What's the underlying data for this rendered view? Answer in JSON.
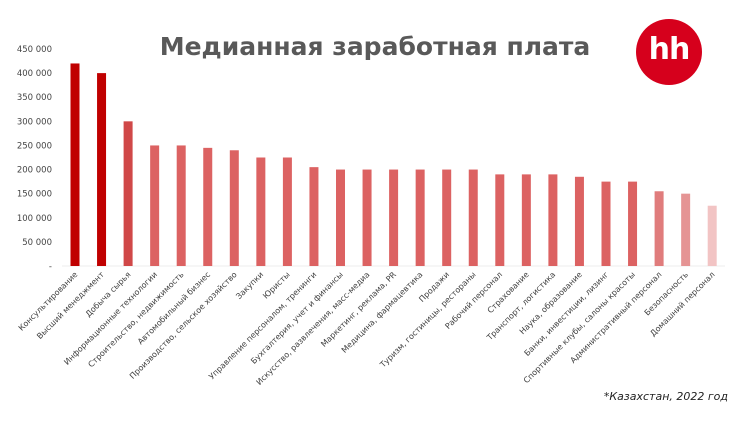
{
  "logo": {
    "text": "hh",
    "color": "#d6001c"
  },
  "footnote": "*Казахстан, 2022 год",
  "chart_data": {
    "type": "bar",
    "title": "Медианная заработная плата",
    "xlabel": "",
    "ylabel": "",
    "ylim": [
      0,
      450000
    ],
    "yticks": [
      0,
      50000,
      100000,
      150000,
      200000,
      250000,
      300000,
      350000,
      400000,
      450000
    ],
    "ytick_labels": [
      "-",
      "50 000",
      "100 000",
      "150 000",
      "200 000",
      "250 000",
      "300 000",
      "350 000",
      "400 000",
      "450 000"
    ],
    "grid": false,
    "categories": [
      "Консультирование",
      "Высший менеджмент",
      "Добыча сырья",
      "Информационные технологии",
      "Строительство, недвижимость",
      "Автомобильный бизнес",
      "Производство, сельское хозяйство",
      "Закупки",
      "Юристы",
      "Управление персоналом, тренинги",
      "Бухгалтерия, учет и финансы",
      "Искусство, развлечения, масс-медиа",
      "Маркетинг, реклама, PR",
      "Медицина, фармацевтика",
      "Продажи",
      "Туризм, гостиницы, рестораны",
      "Рабочий персонал",
      "Страхование",
      "Транспорт, логистика",
      "Наука, образование",
      "Банки, инвестиции, лизинг",
      "Спортивные клубы, салоны красоты",
      "Административный персонал",
      "Безопасность",
      "Домашний персонал"
    ],
    "values": [
      420000,
      400000,
      300000,
      250000,
      250000,
      245000,
      240000,
      225000,
      225000,
      205000,
      200000,
      200000,
      200000,
      200000,
      200000,
      200000,
      190000,
      190000,
      190000,
      185000,
      175000,
      175000,
      155000,
      150000,
      125000
    ],
    "colors": [
      "#c00000",
      "#c00000",
      "#d04848",
      "#dc6262",
      "#dc6262",
      "#dc6262",
      "#dc6262",
      "#dc6262",
      "#dc6262",
      "#dc6262",
      "#dc6262",
      "#dc6262",
      "#dc6262",
      "#dc6262",
      "#dc6262",
      "#dc6262",
      "#dc6262",
      "#dc6262",
      "#dc6262",
      "#dc6262",
      "#dc6262",
      "#dc6262",
      "#e07c7c",
      "#e59494",
      "#f2c4c4"
    ]
  }
}
